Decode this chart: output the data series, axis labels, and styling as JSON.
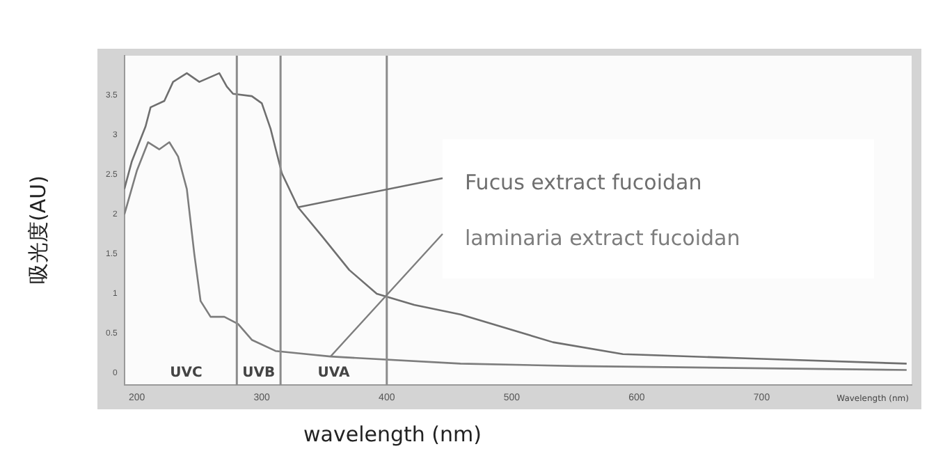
{
  "chart_data": {
    "type": "line",
    "xlabel": "wavelength (nm)",
    "ylabel": "吸光度(AU)",
    "xlim": [
      190,
      820
    ],
    "xticks": [
      200,
      300,
      400,
      500,
      600,
      700
    ],
    "ylim": [
      -0.15,
      4.0
    ],
    "yticks": [
      0,
      0.5,
      1,
      1.5,
      2,
      2.5,
      3,
      3.5
    ],
    "grid": false,
    "legend": false,
    "marker": "none",
    "line_style": "solid",
    "series": [
      {
        "name": "Fucus extract fucoidan",
        "color": "#6f6f6f",
        "x": [
          190,
          196,
          207,
          211,
          222,
          229,
          240,
          250,
          266,
          272,
          277,
          292,
          300,
          307,
          316,
          329,
          348,
          370,
          392,
          422,
          459,
          533,
          589,
          700,
          816
        ],
        "values": [
          2.32,
          2.67,
          3.11,
          3.35,
          3.43,
          3.67,
          3.78,
          3.67,
          3.78,
          3.61,
          3.52,
          3.49,
          3.4,
          3.08,
          2.52,
          2.09,
          1.73,
          1.3,
          1.0,
          0.86,
          0.74,
          0.39,
          0.24,
          0.18,
          0.12
        ]
      },
      {
        "name": "laminaria extract fucoidan",
        "color": "#7d7d7d",
        "x": [
          190,
          200,
          209,
          218,
          226,
          233,
          240,
          246,
          251,
          259,
          270,
          281,
          292,
          311,
          355,
          459,
          551,
          816
        ],
        "values": [
          2.0,
          2.55,
          2.91,
          2.82,
          2.91,
          2.73,
          2.32,
          1.5,
          0.91,
          0.71,
          0.71,
          0.62,
          0.42,
          0.28,
          0.21,
          0.12,
          0.09,
          0.04
        ]
      }
    ],
    "ref_lines": [
      {
        "axis": "x",
        "value": 280,
        "color": "#8c8c8c"
      },
      {
        "axis": "x",
        "value": 315,
        "color": "#8c8c8c"
      },
      {
        "axis": "x",
        "value": 400,
        "color": "#8c8c8c"
      }
    ],
    "annotations": [
      "UVC",
      "UVB",
      "UVA",
      "Wavelength (nm)"
    ]
  }
}
